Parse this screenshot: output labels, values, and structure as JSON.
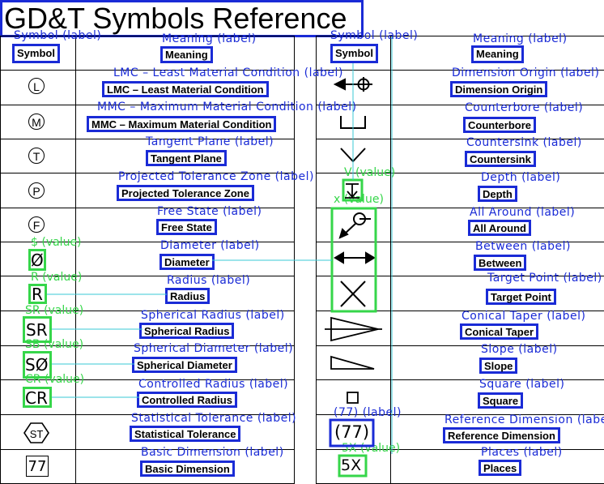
{
  "title": "GD&T Symbols Reference",
  "headers": {
    "symbol": "Symbol",
    "meaning": "Meaning"
  },
  "label_suffix": "(label)",
  "value_suffix": "(value)",
  "left_rows": [
    {
      "icon": "lmc-circle-l-icon",
      "symbol": "L",
      "meaning": "LMC – Least Material Condition"
    },
    {
      "icon": "mmc-circle-m-icon",
      "symbol": "M",
      "meaning": "MMC – Maximum Material Condition"
    },
    {
      "icon": "tangent-circle-t-icon",
      "symbol": "T",
      "meaning": "Tangent Plane"
    },
    {
      "icon": "projected-circle-p-icon",
      "symbol": "P",
      "meaning": "Projected Tolerance Zone"
    },
    {
      "icon": "free-state-circle-f-icon",
      "symbol": "F",
      "meaning": "Free State"
    },
    {
      "icon": "diameter-icon",
      "symbol": "Ø",
      "meaning": "Diameter",
      "value_key": "$"
    },
    {
      "icon": "radius-icon",
      "symbol": "R",
      "meaning": "Radius",
      "value_key": "R"
    },
    {
      "icon": "spherical-radius-icon",
      "symbol": "SR",
      "meaning": "Spherical Radius",
      "value_key": "SR"
    },
    {
      "icon": "spherical-diameter-icon",
      "symbol": "SØ",
      "meaning": "Spherical Diameter",
      "value_key": "SB"
    },
    {
      "icon": "controlled-radius-icon",
      "symbol": "CR",
      "meaning": "Controlled Radius",
      "value_key": "CR"
    },
    {
      "icon": "statistical-st-icon",
      "symbol": "ST",
      "meaning": "Statistical Tolerance"
    },
    {
      "icon": "basic-dimension-icon",
      "symbol": "77",
      "meaning": "Basic Dimension"
    }
  ],
  "right_rows": [
    {
      "icon": "dimension-origin-icon",
      "meaning": "Dimension Origin"
    },
    {
      "icon": "counterbore-icon",
      "meaning": "Counterbore"
    },
    {
      "icon": "countersink-icon",
      "meaning": "Countersink",
      "value_key": "V"
    },
    {
      "icon": "depth-icon",
      "meaning": "Depth",
      "value_key": "x"
    },
    {
      "icon": "all-around-icon",
      "meaning": "All Around"
    },
    {
      "icon": "between-arrow-icon",
      "meaning": "Between"
    },
    {
      "icon": "target-point-icon",
      "meaning": "Target Point"
    },
    {
      "icon": "conical-taper-icon",
      "meaning": "Conical Taper"
    },
    {
      "icon": "slope-icon",
      "meaning": "Slope"
    },
    {
      "icon": "square-icon",
      "meaning": "Square"
    },
    {
      "icon": "reference-dimension-icon",
      "symbol": "(77)",
      "meaning": "Reference Dimension",
      "label_key": "(77)"
    },
    {
      "icon": "places-icon",
      "symbol": "5X",
      "meaning": "Places",
      "value_key": "5X"
    }
  ],
  "colors": {
    "label_box": "#1a2bd6",
    "value_box": "#36d64a",
    "link": "#39c9d6"
  }
}
